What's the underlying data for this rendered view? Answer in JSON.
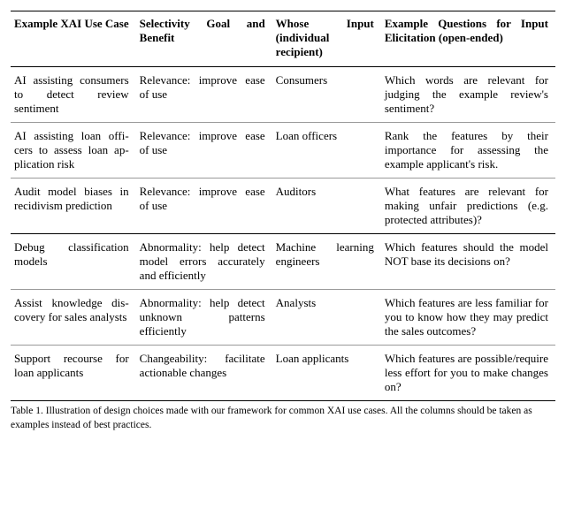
{
  "table": {
    "columns": [
      "Example XAI Use Case",
      "Selectivity Goal and Benefit",
      "Whose Input (individual recipient)",
      "Example Questions for Input Elicitation (open-ended)"
    ],
    "rows": [
      [
        "AI assisting con­sumers to detect review sentiment",
        "Relevance: improve ease of use",
        "Consumers",
        "Which words are relevant for judging the example review's sentiment?"
      ],
      [
        "AI assisting loan offi­cers to assess loan ap­plication risk",
        "Relevance: improve ease of use",
        "Loan officers",
        "Rank the features by their importance for assessing the example applicant's risk."
      ],
      [
        "Audit model biases in recidivism prediction",
        "Relevance: improve ease of use",
        "Auditors",
        "What features are rel­evant for making un­fair predictions (e.g. pro­tected attributes)?"
      ],
      [
        "Debug classification models",
        "Abnormality: help detect model errors accurately and effi­ciently",
        "Machine learning engineers",
        "Which features should the model NOT base its decisions on?"
      ],
      [
        "Assist knowledge dis­covery for sales ana­lysts",
        "Abnormality: help detect unknown patterns efficiently",
        "Analysts",
        "Which features are less familiar for you to know how they may predict the sales outcomes?"
      ],
      [
        "Support recourse for loan applicants",
        "Changeability: fa­cilitate actionable changes",
        "Loan applicants",
        "Which features are possi­ble/require less effort for you to make changes on?"
      ]
    ],
    "separator_after_row": 2,
    "caption": "Table 1.  Illustration of design choices made with our framework for common XAI use cases. All the columns should be taken as examples instead of best practices."
  }
}
